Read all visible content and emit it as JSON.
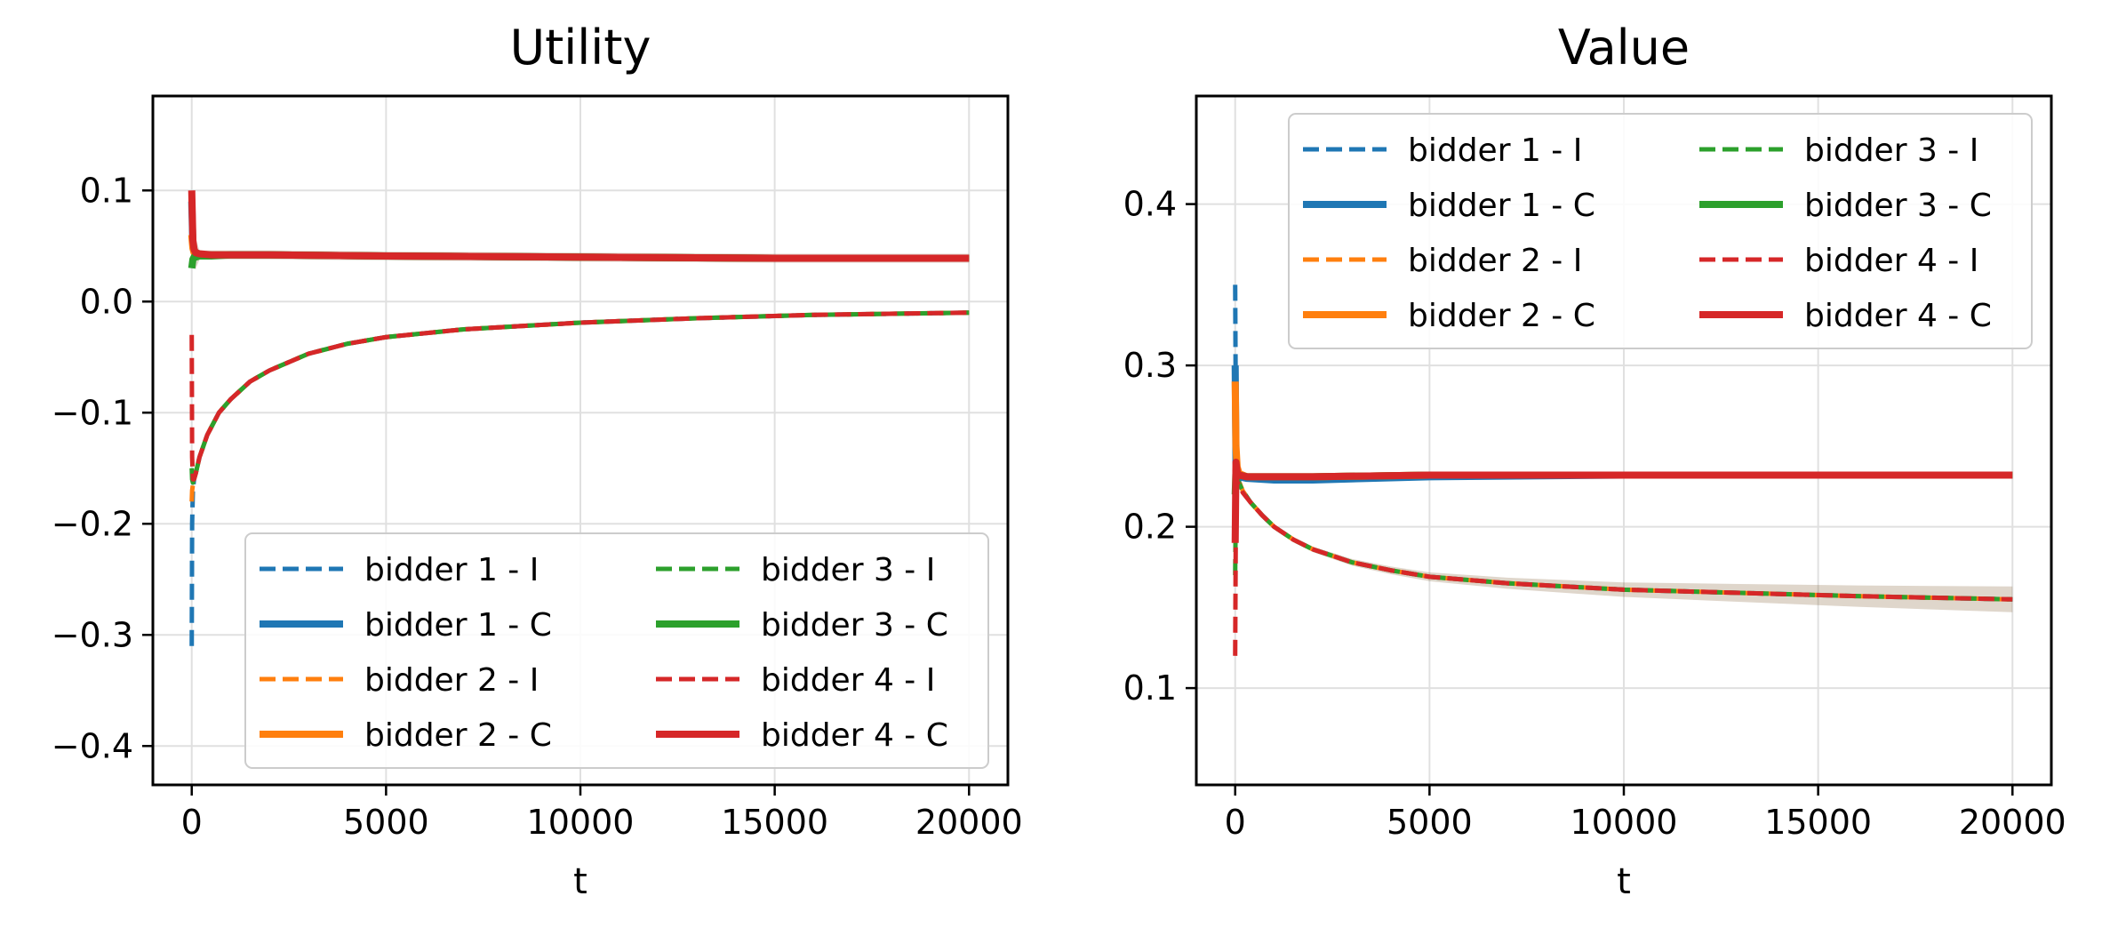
{
  "chart_data": [
    {
      "type": "line",
      "title": "Utility",
      "xlabel": "t",
      "ylabel": "",
      "xlim": [
        -1000,
        21000
      ],
      "ylim": [
        -0.435,
        0.185
      ],
      "xticks": [
        0,
        5000,
        10000,
        15000,
        20000
      ],
      "xtick_labels": [
        "0",
        "5000",
        "10000",
        "15000",
        "20000"
      ],
      "yticks": [
        -0.4,
        -0.3,
        -0.2,
        -0.1,
        0.0,
        0.1
      ],
      "ytick_labels": [
        "−0.4",
        "−0.3",
        "−0.2",
        "−0.1",
        "0.0",
        "0.1"
      ],
      "grid": true,
      "legend_position": "lower-right",
      "legend_columns": 2,
      "series": [
        {
          "name": "bidder 1 - I",
          "color": "#1f77b4",
          "style": "dashed",
          "x": [
            0,
            10,
            30,
            60,
            100,
            200,
            400,
            700,
            1000,
            1500,
            2000,
            3000,
            4000,
            5000,
            7000,
            10000,
            13000,
            16000,
            20000
          ],
          "values": [
            -0.31,
            -0.2,
            -0.17,
            -0.16,
            -0.155,
            -0.14,
            -0.12,
            -0.1,
            -0.088,
            -0.072,
            -0.062,
            -0.047,
            -0.038,
            -0.032,
            -0.025,
            -0.019,
            -0.015,
            -0.012,
            -0.01
          ]
        },
        {
          "name": "bidder 1 - C",
          "color": "#1f77b4",
          "style": "solid",
          "x": [
            0,
            30,
            60,
            100,
            200,
            500,
            1000,
            2000,
            5000,
            10000,
            15000,
            20000
          ],
          "values": [
            0.09,
            0.05,
            0.045,
            0.043,
            0.042,
            0.042,
            0.042,
            0.042,
            0.041,
            0.04,
            0.039,
            0.039
          ]
        },
        {
          "name": "bidder 2 - I",
          "color": "#ff7f0e",
          "style": "dashed",
          "x": [
            0,
            10,
            30,
            60,
            100,
            200,
            400,
            700,
            1000,
            1500,
            2000,
            3000,
            4000,
            5000,
            7000,
            10000,
            13000,
            16000,
            20000
          ],
          "values": [
            -0.18,
            -0.17,
            -0.165,
            -0.16,
            -0.155,
            -0.14,
            -0.12,
            -0.1,
            -0.088,
            -0.072,
            -0.062,
            -0.047,
            -0.038,
            -0.032,
            -0.025,
            -0.019,
            -0.015,
            -0.012,
            -0.01
          ]
        },
        {
          "name": "bidder 2 - C",
          "color": "#ff7f0e",
          "style": "solid",
          "x": [
            0,
            30,
            60,
            100,
            200,
            500,
            1000,
            2000,
            5000,
            10000,
            15000,
            20000
          ],
          "values": [
            0.06,
            0.048,
            0.044,
            0.043,
            0.042,
            0.042,
            0.042,
            0.042,
            0.041,
            0.04,
            0.039,
            0.039
          ]
        },
        {
          "name": "bidder 3 - I",
          "color": "#2ca02c",
          "style": "dashed",
          "x": [
            0,
            10,
            30,
            60,
            100,
            200,
            400,
            700,
            1000,
            1500,
            2000,
            3000,
            4000,
            5000,
            7000,
            10000,
            13000,
            16000,
            20000
          ],
          "values": [
            -0.15,
            -0.16,
            -0.163,
            -0.16,
            -0.155,
            -0.14,
            -0.12,
            -0.1,
            -0.088,
            -0.072,
            -0.062,
            -0.047,
            -0.038,
            -0.032,
            -0.025,
            -0.019,
            -0.015,
            -0.012,
            -0.01
          ]
        },
        {
          "name": "bidder 3 - C",
          "color": "#2ca02c",
          "style": "solid",
          "x": [
            0,
            30,
            60,
            100,
            200,
            500,
            1000,
            2000,
            5000,
            10000,
            15000,
            20000
          ],
          "values": [
            0.03,
            0.038,
            0.04,
            0.04,
            0.041,
            0.041,
            0.042,
            0.042,
            0.041,
            0.04,
            0.039,
            0.039
          ]
        },
        {
          "name": "bidder 4 - I",
          "color": "#d62728",
          "style": "dashed",
          "x": [
            0,
            10,
            30,
            60,
            100,
            200,
            400,
            700,
            1000,
            1500,
            2000,
            3000,
            4000,
            5000,
            7000,
            10000,
            13000,
            16000,
            20000
          ],
          "values": [
            -0.03,
            -0.14,
            -0.16,
            -0.16,
            -0.155,
            -0.14,
            -0.12,
            -0.1,
            -0.088,
            -0.072,
            -0.062,
            -0.047,
            -0.038,
            -0.032,
            -0.025,
            -0.019,
            -0.015,
            -0.012,
            -0.01
          ]
        },
        {
          "name": "bidder 4 - C",
          "color": "#d62728",
          "style": "solid",
          "x": [
            0,
            30,
            60,
            100,
            200,
            500,
            1000,
            2000,
            5000,
            10000,
            15000,
            20000
          ],
          "values": [
            0.1,
            0.055,
            0.047,
            0.044,
            0.043,
            0.042,
            0.042,
            0.042,
            0.041,
            0.04,
            0.039,
            0.039
          ]
        }
      ]
    },
    {
      "type": "line",
      "title": "Value",
      "xlabel": "t",
      "ylabel": "",
      "xlim": [
        -1000,
        21000
      ],
      "ylim": [
        0.04,
        0.467
      ],
      "xticks": [
        0,
        5000,
        10000,
        15000,
        20000
      ],
      "xtick_labels": [
        "0",
        "5000",
        "10000",
        "15000",
        "20000"
      ],
      "yticks": [
        0.1,
        0.2,
        0.3,
        0.4
      ],
      "ytick_labels": [
        "0.1",
        "0.2",
        "0.3",
        "0.4"
      ],
      "grid": true,
      "legend_position": "upper-right",
      "legend_columns": 2,
      "series": [
        {
          "name": "bidder 1 - I",
          "color": "#1f77b4",
          "style": "dashed",
          "x": [
            0,
            20,
            50,
            100,
            200,
            400,
            700,
            1000,
            1500,
            2000,
            3000,
            4000,
            5000,
            7000,
            10000,
            13000,
            16000,
            20000
          ],
          "values": [
            0.35,
            0.25,
            0.235,
            0.228,
            0.222,
            0.215,
            0.207,
            0.2,
            0.192,
            0.186,
            0.178,
            0.173,
            0.169,
            0.165,
            0.161,
            0.159,
            0.157,
            0.155
          ]
        },
        {
          "name": "bidder 1 - C",
          "color": "#1f77b4",
          "style": "solid",
          "x": [
            0,
            20,
            50,
            100,
            300,
            1000,
            2000,
            5000,
            10000,
            15000,
            20000
          ],
          "values": [
            0.3,
            0.24,
            0.233,
            0.231,
            0.23,
            0.229,
            0.229,
            0.231,
            0.232,
            0.232,
            0.232
          ]
        },
        {
          "name": "bidder 2 - I",
          "color": "#ff7f0e",
          "style": "dashed",
          "x": [
            0,
            20,
            50,
            100,
            200,
            400,
            700,
            1000,
            1500,
            2000,
            3000,
            4000,
            5000,
            7000,
            10000,
            13000,
            16000,
            20000
          ],
          "values": [
            0.2,
            0.235,
            0.232,
            0.228,
            0.222,
            0.215,
            0.207,
            0.2,
            0.192,
            0.186,
            0.178,
            0.173,
            0.169,
            0.165,
            0.161,
            0.159,
            0.157,
            0.155
          ]
        },
        {
          "name": "bidder 2 - C",
          "color": "#ff7f0e",
          "style": "solid",
          "x": [
            0,
            20,
            50,
            100,
            300,
            1000,
            2000,
            5000,
            10000,
            15000,
            20000
          ],
          "values": [
            0.29,
            0.25,
            0.237,
            0.233,
            0.231,
            0.231,
            0.231,
            0.232,
            0.232,
            0.232,
            0.232
          ]
        },
        {
          "name": "bidder 3 - I",
          "color": "#2ca02c",
          "style": "dashed",
          "x": [
            0,
            20,
            50,
            100,
            200,
            400,
            700,
            1000,
            1500,
            2000,
            3000,
            4000,
            5000,
            7000,
            10000,
            13000,
            16000,
            20000
          ],
          "values": [
            0.17,
            0.225,
            0.23,
            0.227,
            0.222,
            0.215,
            0.207,
            0.2,
            0.192,
            0.186,
            0.178,
            0.173,
            0.169,
            0.165,
            0.161,
            0.159,
            0.157,
            0.155
          ]
        },
        {
          "name": "bidder 3 - C",
          "color": "#2ca02c",
          "style": "solid",
          "x": [
            0,
            20,
            50,
            100,
            300,
            1000,
            2000,
            5000,
            10000,
            15000,
            20000
          ],
          "values": [
            0.22,
            0.235,
            0.233,
            0.232,
            0.231,
            0.231,
            0.231,
            0.232,
            0.232,
            0.232,
            0.232
          ]
        },
        {
          "name": "bidder 4 - I",
          "color": "#d62728",
          "style": "dashed",
          "x": [
            0,
            20,
            50,
            100,
            200,
            400,
            700,
            1000,
            1500,
            2000,
            3000,
            4000,
            5000,
            7000,
            10000,
            13000,
            16000,
            20000
          ],
          "values": [
            0.12,
            0.22,
            0.228,
            0.226,
            0.221,
            0.215,
            0.207,
            0.2,
            0.192,
            0.186,
            0.178,
            0.173,
            0.169,
            0.165,
            0.161,
            0.159,
            0.157,
            0.155
          ]
        },
        {
          "name": "bidder 4 - C",
          "color": "#d62728",
          "style": "solid",
          "x": [
            0,
            20,
            50,
            100,
            300,
            1000,
            2000,
            5000,
            10000,
            15000,
            20000
          ],
          "values": [
            0.19,
            0.24,
            0.234,
            0.232,
            0.231,
            0.231,
            0.231,
            0.232,
            0.232,
            0.232,
            0.232
          ]
        }
      ]
    }
  ]
}
